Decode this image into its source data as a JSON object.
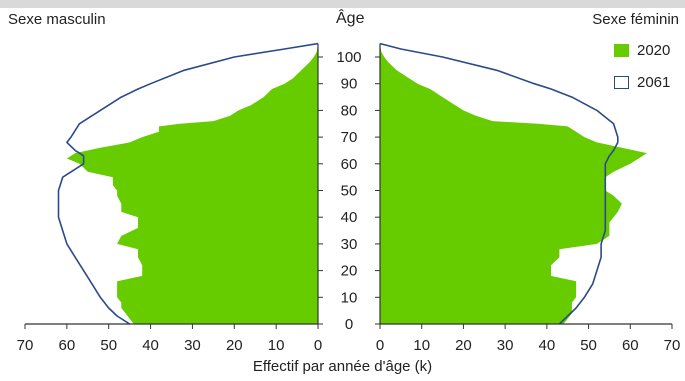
{
  "chart_data": {
    "type": "population-pyramid",
    "title": "",
    "left_panel_label": "Sexe masculin",
    "right_panel_label": "Sexe féminin",
    "center_axis_label": "Âge",
    "xlabel": "Effectif par année d'âge (k)",
    "age_ticks": [
      "0",
      "10",
      "20",
      "30",
      "40",
      "50",
      "60",
      "70",
      "80",
      "90",
      "100"
    ],
    "male_x_ticks": [
      "70",
      "60",
      "50",
      "40",
      "30",
      "20",
      "10",
      "0"
    ],
    "female_x_ticks": [
      "0",
      "10",
      "20",
      "30",
      "40",
      "50",
      "60",
      "70"
    ],
    "xlim": [
      0,
      70
    ],
    "ylim": [
      0,
      105
    ],
    "legend_position": "top-right",
    "series": [
      {
        "name": "2020",
        "style": "filled",
        "color": "#66cc00",
        "age": [
          0,
          2,
          4,
          6,
          8,
          10,
          13,
          16,
          18,
          19,
          20,
          22,
          25,
          28,
          30,
          33,
          36,
          38,
          40,
          42,
          45,
          48,
          50,
          52,
          55,
          57,
          60,
          62,
          64,
          66,
          68,
          70,
          72,
          74,
          75,
          76,
          78,
          80,
          82,
          85,
          88,
          90,
          92,
          95,
          98,
          100,
          102,
          105
        ],
        "male": [
          44,
          45,
          46,
          47,
          47,
          48,
          48,
          48,
          42,
          42,
          42,
          42,
          43,
          43,
          48,
          47,
          43,
          43,
          43,
          47,
          47,
          48,
          48,
          49,
          49,
          55,
          57,
          60,
          58,
          52,
          45,
          42,
          38,
          38,
          33,
          25,
          21,
          19,
          16,
          13,
          11,
          8,
          6,
          4,
          2,
          1,
          0.3,
          0
        ],
        "female": [
          44,
          45,
          46,
          46,
          46,
          47,
          47,
          47,
          41,
          41,
          41,
          41,
          43,
          43,
          52,
          55,
          55,
          55,
          56,
          57,
          58,
          56,
          54,
          54,
          54,
          56,
          60,
          62,
          64,
          58,
          52,
          49,
          47,
          45,
          38,
          27,
          23,
          20,
          18,
          15,
          12,
          9,
          7,
          4,
          2,
          1,
          0.3,
          0
        ]
      },
      {
        "name": "2061",
        "style": "outline",
        "color": "#2b4a8a",
        "age": [
          0,
          3,
          6,
          10,
          15,
          20,
          25,
          30,
          35,
          40,
          45,
          50,
          55,
          60,
          63,
          65,
          68,
          70,
          75,
          80,
          85,
          88,
          90,
          95,
          100,
          103,
          105
        ],
        "male": [
          45,
          48,
          50,
          52,
          54,
          56,
          58,
          60,
          61,
          62,
          62,
          62,
          61,
          56,
          56,
          58,
          60,
          59,
          57,
          52,
          47,
          43,
          40,
          32,
          20,
          8,
          0
        ],
        "female": [
          43,
          45,
          47,
          49,
          51,
          52,
          53,
          53,
          54,
          54,
          54,
          54,
          54,
          54,
          55,
          56,
          57,
          57,
          56,
          52,
          46,
          41,
          37,
          28,
          15,
          5,
          0
        ]
      }
    ]
  },
  "colors": {
    "fill_2020": "#66cc00",
    "outline_2061": "#2b4a8a",
    "text": "#222222",
    "axis": "#333333"
  }
}
